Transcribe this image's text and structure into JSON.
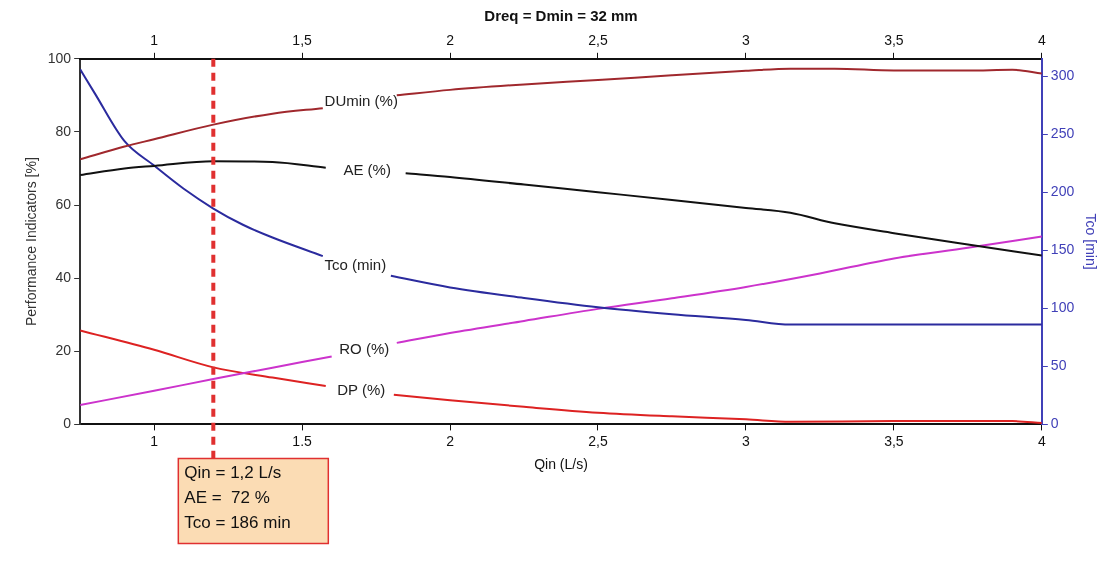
{
  "chart_data": {
    "type": "line",
    "title": "Dreq = Dmin = 32 mm",
    "xlabel": "Qin (L/s)",
    "ylabel": "Performance Indicators [%]",
    "y2label": "Tco [min]",
    "xlim": [
      0.75,
      4
    ],
    "xticks": [
      1,
      {
        "value": 1.5,
        "label": "1.5"
      },
      2,
      {
        "value": 2.5,
        "label": "2,5"
      },
      3,
      {
        "value": 3.5,
        "label": "3,5"
      },
      4
    ],
    "x2lim": [
      0.75,
      4
    ],
    "x2ticks": [
      1,
      {
        "value": 1.5,
        "label": "1,5"
      },
      2,
      {
        "value": 2.5,
        "label": "2,5"
      },
      3,
      {
        "value": 3.5,
        "label": "3,5"
      },
      4
    ],
    "ylim": [
      0,
      100
    ],
    "yticks": [
      0,
      20,
      40,
      60,
      80,
      100
    ],
    "y2lim": [
      0,
      315
    ],
    "y2ticks": [
      0,
      50,
      100,
      150,
      200,
      250,
      300
    ],
    "marker": "none",
    "series": [
      {
        "name": "DUmin (%)",
        "color": "#a0282d",
        "x": [
          0.75,
          0.9,
          1.0,
          1.2,
          1.4,
          1.57,
          1.7,
          1.82,
          2.0,
          2.25,
          2.5,
          2.75,
          3.0,
          3.15,
          3.3,
          3.5,
          3.75,
          3.9,
          4.0
        ],
        "values": [
          72.5,
          76,
          78,
          82,
          85,
          86.5,
          null,
          90,
          91.5,
          93,
          94.2,
          95.5,
          96.7,
          97.3,
          97.3,
          96.8,
          96.8,
          97,
          96
        ]
      },
      {
        "name": "AE (%)",
        "color": "#111111",
        "x": [
          0.75,
          0.9,
          1.0,
          1.2,
          1.4,
          1.58,
          1.72,
          1.85,
          2.0,
          2.25,
          2.5,
          2.75,
          3.0,
          3.15,
          3.3,
          3.5,
          3.75,
          4.0
        ],
        "values": [
          68.2,
          70,
          70.7,
          72,
          71.8,
          70.2,
          null,
          68.7,
          67.7,
          65.6,
          63.5,
          61.4,
          59.2,
          57.9,
          55,
          52.3,
          49.2,
          46.2
        ]
      },
      {
        "name": "Tco (min)",
        "color": "#2b2b9e",
        "axis": "y2",
        "x": [
          0.75,
          0.8,
          0.9,
          1.0,
          1.1,
          1.2,
          1.3,
          1.4,
          1.57,
          1.68,
          1.8,
          2.0,
          2.25,
          2.5,
          2.75,
          3.0,
          3.15,
          3.5,
          4.0
        ],
        "values": [
          306,
          285,
          244,
          223,
          203,
          186,
          172,
          161,
          145,
          null,
          128,
          118,
          109,
          101,
          95,
          90,
          86,
          86,
          86
        ]
      },
      {
        "name": "RO (%)",
        "color": "#cc33cc",
        "x": [
          0.75,
          1.0,
          1.2,
          1.4,
          1.6,
          1.71,
          1.82,
          2.0,
          2.25,
          2.5,
          2.75,
          3.0,
          3.25,
          3.5,
          3.75,
          4.0
        ],
        "values": [
          5.3,
          9.2,
          12.4,
          15.5,
          18.6,
          null,
          22.3,
          25,
          28.3,
          31.6,
          34.5,
          37.6,
          41.3,
          45.4,
          48.3,
          51.4
        ]
      },
      {
        "name": "DP (%)",
        "color": "#dd2222",
        "x": [
          0.75,
          1.0,
          1.2,
          1.4,
          1.58,
          1.7,
          1.81,
          2.0,
          2.25,
          2.5,
          2.75,
          3.0,
          3.15,
          3.5,
          3.9,
          4.0
        ],
        "values": [
          25.7,
          20.4,
          15.6,
          12.8,
          10.5,
          null,
          8.1,
          6.6,
          4.8,
          3.2,
          2.2,
          1.4,
          0.7,
          0.9,
          0.9,
          0.4
        ]
      }
    ],
    "ref_lines": [
      {
        "axis": "x",
        "value": 1.2,
        "label": "Qin = 1,2 L/s\nAE =  72 %\nTco = 186 min",
        "color": "#e03030",
        "line_style": "dashed"
      }
    ]
  }
}
